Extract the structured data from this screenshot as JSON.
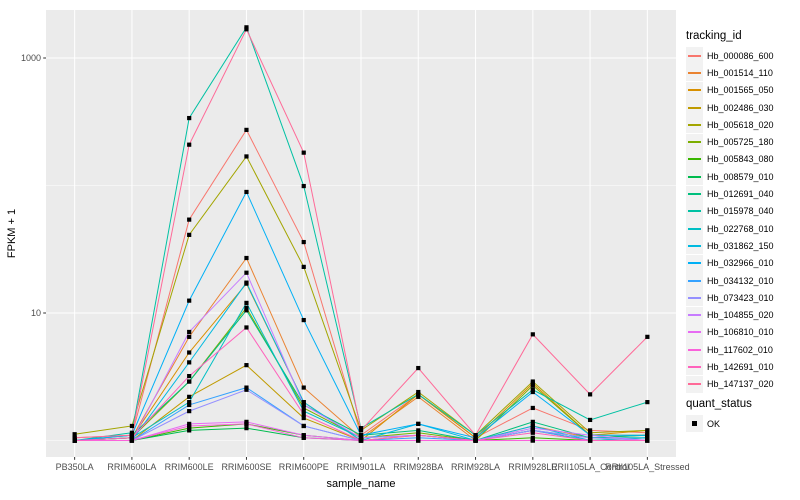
{
  "figure": {
    "bg": "#FFFFFF",
    "panel_bg": "#EBEBEB",
    "grid_color": "#FFFFFF",
    "tick_mark_color": "#333333",
    "tick_label_color": "#4D4D4D",
    "text_color": "#000000",
    "point_color": "#000000"
  },
  "chart_data": {
    "type": "line",
    "title": "",
    "xlabel": "sample_name",
    "ylabel": "FPKM + 1",
    "y_scale": "log10",
    "y_ticks": [
      {
        "label": "10",
        "value": 10
      },
      {
        "label": "1000",
        "value": 1000
      }
    ],
    "y_minor_gridlines": [
      1,
      100
    ],
    "grid": true,
    "legend_position": "right",
    "categories": [
      "PB350LA",
      "RRIM600LA",
      "RRIM600LE",
      "RRIM600SE",
      "RRIM600PE",
      "RRIM901LA",
      "RRIM928BA",
      "RRIM928LA",
      "RRIM928LE",
      "RRII105LA_Control",
      "RRII105LA_Stressed"
    ],
    "series": [
      {
        "name": "Hb_000086_600",
        "color": "#F8766D",
        "values": [
          1.05,
          1.1,
          54,
          273,
          36,
          1.1,
          2.3,
          1.05,
          1.8,
          1.2,
          1.15
        ]
      },
      {
        "name": "Hb_001514_110",
        "color": "#EA8331",
        "values": [
          1.0,
          1.05,
          6.5,
          27,
          2.6,
          1.05,
          2.2,
          1.0,
          1.3,
          1.05,
          1.1
        ]
      },
      {
        "name": "Hb_001565_050",
        "color": "#D89000",
        "values": [
          1.0,
          1.05,
          4.9,
          17,
          2.0,
          1.0,
          2.3,
          1.05,
          2.8,
          1.1,
          1.2
        ]
      },
      {
        "name": "Hb_002486_030",
        "color": "#C09B00",
        "values": [
          1.0,
          1.0,
          2.2,
          3.9,
          1.5,
          1.0,
          1.1,
          1.0,
          1.2,
          1.0,
          1.05
        ]
      },
      {
        "name": "Hb_005618_020",
        "color": "#A3A500",
        "values": [
          1.12,
          1.3,
          41,
          169,
          23,
          1.2,
          2.4,
          1.1,
          2.9,
          1.15,
          1.2
        ]
      },
      {
        "name": "Hb_005725_180",
        "color": "#7CAE00",
        "values": [
          1.0,
          1.05,
          2.9,
          11,
          1.8,
          1.05,
          1.15,
          1.0,
          2.7,
          1.1,
          1.1
        ]
      },
      {
        "name": "Hb_005843_080",
        "color": "#39B600",
        "values": [
          1.0,
          1.0,
          1.25,
          1.35,
          1.1,
          1.0,
          1.0,
          1.0,
          1.05,
          1.0,
          1.0
        ]
      },
      {
        "name": "Hb_008579_010",
        "color": "#00BB4E",
        "values": [
          1.0,
          1.0,
          1.2,
          1.25,
          1.05,
          1.0,
          1.0,
          1.0,
          1.0,
          1.0,
          1.0
        ]
      },
      {
        "name": "Hb_012691_040",
        "color": "#00BF7D",
        "values": [
          1.0,
          1.1,
          2.9,
          10.5,
          1.9,
          1.1,
          1.2,
          1.0,
          1.4,
          1.05,
          1.1
        ]
      },
      {
        "name": "Hb_015978_040",
        "color": "#00C1A3",
        "values": [
          1.0,
          1.15,
          338,
          1740,
          99,
          1.25,
          2.3,
          1.1,
          2.5,
          1.45,
          2.0
        ]
      },
      {
        "name": "Hb_022768_010",
        "color": "#00BFC4",
        "values": [
          1.0,
          1.05,
          2.0,
          12,
          1.7,
          1.05,
          1.1,
          1.0,
          1.2,
          1.05,
          1.05
        ]
      },
      {
        "name": "Hb_031862_150",
        "color": "#00BAE0",
        "values": [
          1.0,
          1.0,
          4.1,
          17.3,
          2.0,
          1.0,
          1.35,
          1.0,
          1.3,
          1.0,
          1.05
        ]
      },
      {
        "name": "Hb_032966_010",
        "color": "#00B0F6",
        "values": [
          1.0,
          1.1,
          12.5,
          89,
          8.8,
          1.1,
          1.35,
          1.05,
          2.4,
          1.1,
          1.1
        ]
      },
      {
        "name": "Hb_034132_010",
        "color": "#35A2FF",
        "values": [
          1.0,
          1.0,
          1.9,
          2.6,
          1.3,
          1.0,
          1.05,
          1.0,
          1.2,
          1.0,
          1.0
        ]
      },
      {
        "name": "Hb_073423_010",
        "color": "#9590FF",
        "values": [
          1.0,
          1.0,
          1.7,
          2.5,
          1.3,
          1.0,
          1.0,
          1.0,
          1.2,
          1.05,
          1.0
        ]
      },
      {
        "name": "Hb_104855_020",
        "color": "#C77CFF",
        "values": [
          1.0,
          1.0,
          7.1,
          20.7,
          1.9,
          1.05,
          1.1,
          1.0,
          1.25,
          1.1,
          1.0
        ]
      },
      {
        "name": "Hb_106810_010",
        "color": "#E76BF3",
        "values": [
          1.0,
          1.0,
          1.35,
          1.4,
          1.1,
          1.0,
          1.0,
          1.0,
          1.0,
          1.0,
          1.0
        ]
      },
      {
        "name": "Hb_117602_010",
        "color": "#FA62DB",
        "values": [
          1.0,
          1.0,
          1.3,
          1.35,
          1.05,
          1.0,
          1.0,
          1.0,
          1.0,
          1.0,
          1.0
        ]
      },
      {
        "name": "Hb_142691_010",
        "color": "#FF62BC",
        "values": [
          1.0,
          1.05,
          3.2,
          7.7,
          1.6,
          1.0,
          1.1,
          1.0,
          1.15,
          1.0,
          1.0
        ]
      },
      {
        "name": "Hb_147137_020",
        "color": "#FF6A98",
        "values": [
          1.05,
          1.1,
          209,
          1680,
          181,
          1.2,
          3.7,
          1.1,
          6.8,
          2.3,
          6.5
        ]
      }
    ]
  },
  "legend": {
    "title": "tracking_id"
  },
  "legend2": {
    "title": "quant_status",
    "items": [
      {
        "label": "OK"
      }
    ]
  }
}
